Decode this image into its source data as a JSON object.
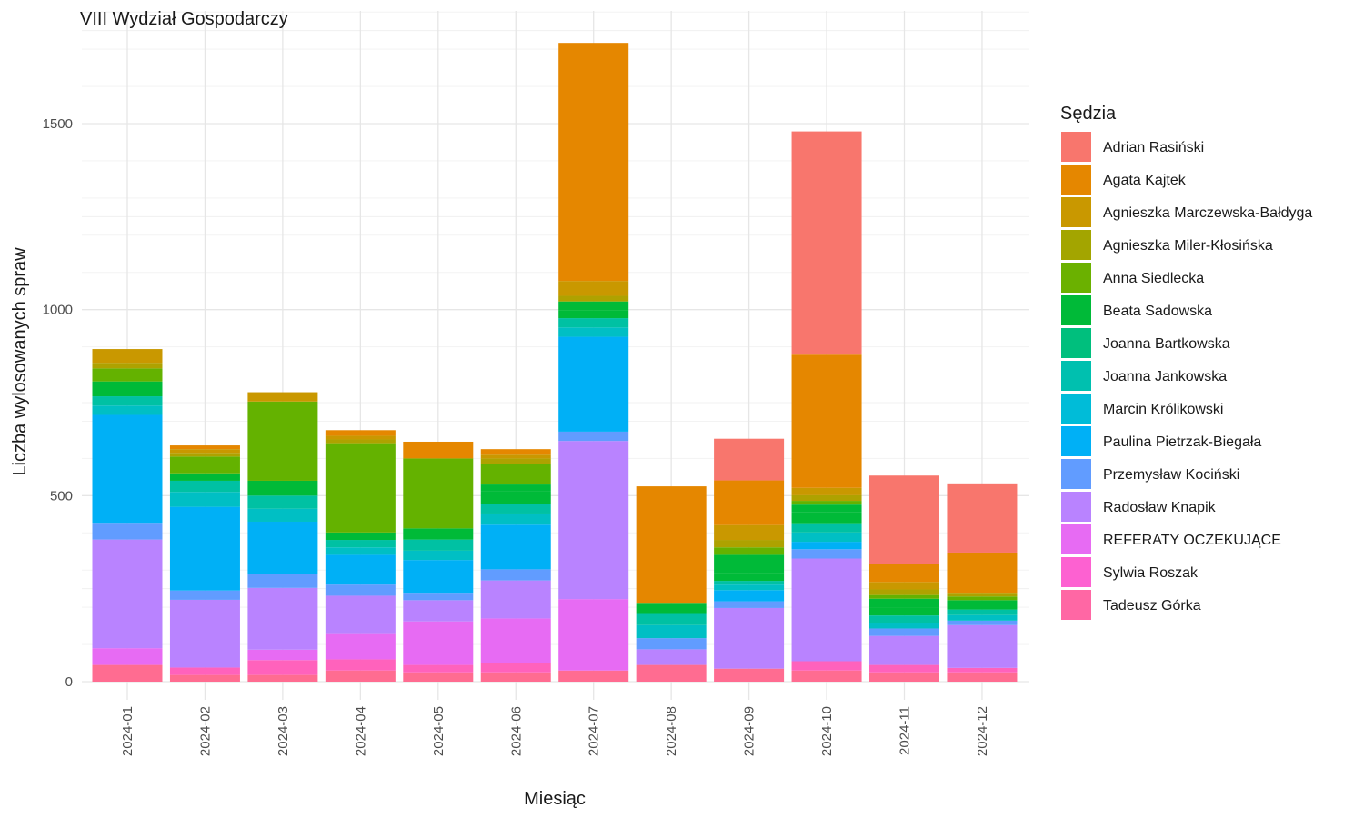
{
  "chart_data": {
    "type": "bar",
    "stacked": true,
    "title": "VIII Wydział Gospodarczy",
    "xlabel": "Miesiąc",
    "ylabel": "Liczba wylosowanych spraw",
    "ylim": [
      0,
      1800
    ],
    "yticks": [
      0,
      500,
      1000,
      1500
    ],
    "grid": true,
    "legend_position": "right",
    "legend_title": "Sędzia",
    "categories": [
      "2024-01",
      "2024-02",
      "2024-03",
      "2024-04",
      "2024-05",
      "2024-06",
      "2024-07",
      "2024-08",
      "2024-09",
      "2024-10",
      "2024-11",
      "2024-12"
    ],
    "series": [
      {
        "name": "Tadeusz Górka",
        "color": "#FF6C91",
        "values": [
          45,
          18,
          18,
          30,
          25,
          25,
          30,
          45,
          35,
          30,
          25,
          25
        ]
      },
      {
        "name": "Sylwia Roszak",
        "color": "#FF62BC",
        "values": [
          0,
          20,
          40,
          30,
          20,
          25,
          0,
          0,
          0,
          25,
          20,
          12
        ]
      },
      {
        "name": "REFERATY OCZEKUJĄCE",
        "color": "#E76BF3",
        "values": [
          45,
          0,
          28,
          68,
          117,
          120,
          192,
          0,
          0,
          0,
          0,
          0
        ]
      },
      {
        "name": "Radosław Knapik",
        "color": "#B983FF",
        "values": [
          292,
          182,
          166,
          103,
          57,
          102,
          425,
          42,
          163,
          276,
          78,
          115
        ]
      },
      {
        "name": "Przemysław Kociński",
        "color": "#619CFF",
        "values": [
          45,
          25,
          38,
          30,
          20,
          30,
          25,
          30,
          18,
          25,
          20,
          12
        ]
      },
      {
        "name": "Paulina Pietrzak-Biegała",
        "color": "#00B0F6",
        "values": [
          290,
          225,
          140,
          80,
          88,
          120,
          255,
          0,
          30,
          20,
          0,
          0
        ]
      },
      {
        "name": "Marcin Królikowski",
        "color": "#00BFC4",
        "values": [
          25,
          40,
          35,
          20,
          25,
          30,
          25,
          35,
          15,
          25,
          15,
          15
        ]
      },
      {
        "name": "Joanna Jankowska",
        "color": "#00C1A3",
        "values": [
          25,
          30,
          35,
          20,
          30,
          25,
          25,
          30,
          10,
          25,
          20,
          15
        ]
      },
      {
        "name": "Joanna Bartkowska",
        "color": "#00BA38",
        "values": [
          40,
          20,
          40,
          20,
          30,
          35,
          20,
          30,
          20,
          30,
          20,
          15
        ]
      },
      {
        "name": "Beata Sadowska",
        "color": "#00BA38",
        "values": [
          0,
          0,
          0,
          0,
          0,
          18,
          25,
          0,
          50,
          20,
          25,
          10
        ]
      },
      {
        "name": "Anna Siedlecka",
        "color": "#64B200",
        "values": [
          35,
          45,
          213,
          240,
          188,
          55,
          0,
          0,
          20,
          10,
          10,
          10
        ]
      },
      {
        "name": "Agnieszka Miler-Kłosińska",
        "color": "#AEA200",
        "values": [
          15,
          10,
          0,
          10,
          0,
          15,
          15,
          0,
          20,
          15,
          15,
          10
        ]
      },
      {
        "name": "Agnieszka Marczewska-Bałdyga",
        "color": "#C99800",
        "values": [
          37,
          10,
          25,
          10,
          0,
          10,
          40,
          0,
          40,
          20,
          20,
          0
        ]
      },
      {
        "name": "Agata Kajtek",
        "color": "#E58700",
        "values": [
          0,
          10,
          0,
          15,
          45,
          15,
          640,
          313,
          120,
          358,
          48,
          108
        ]
      },
      {
        "name": "Adrian Rasiński",
        "color": "#F8766D",
        "values": [
          0,
          0,
          0,
          0,
          0,
          0,
          0,
          0,
          112,
          600,
          238,
          186
        ]
      }
    ],
    "legend_order": [
      "Adrian Rasiński",
      "Agata Kajtek",
      "Agnieszka Marczewska-Bałdyga",
      "Agnieszka Miler-Kłosińska",
      "Anna Siedlecka",
      "Beata Sadowska",
      "Joanna Bartkowska",
      "Joanna Jankowska",
      "Marcin Królikowski",
      "Paulina Pietrzak-Biegała",
      "Przemysław Kociński",
      "Radosław Knapik",
      "REFERATY OCZEKUJĄCE",
      "Sylwia Roszak",
      "Tadeusz Górka"
    ],
    "legend_colors": {
      "Adrian Rasiński": "#F8766D",
      "Agata Kajtek": "#E58700",
      "Agnieszka Marczewska-Bałdyga": "#C99800",
      "Agnieszka Miler-Kłosińska": "#A3A500",
      "Anna Siedlecka": "#6BB100",
      "Beata Sadowska": "#00BA38",
      "Joanna Bartkowska": "#00BF7D",
      "Joanna Jankowska": "#00C0AF",
      "Marcin Królikowski": "#00BCD8",
      "Paulina Pietrzak-Biegała": "#00B0F6",
      "Przemysław Kociński": "#619CFF",
      "Radosław Knapik": "#B983FF",
      "REFERATY OCZEKUJĄCE": "#E76BF3",
      "Sylwia Roszak": "#FD61D1",
      "Tadeusz Górka": "#FF67A4"
    }
  }
}
